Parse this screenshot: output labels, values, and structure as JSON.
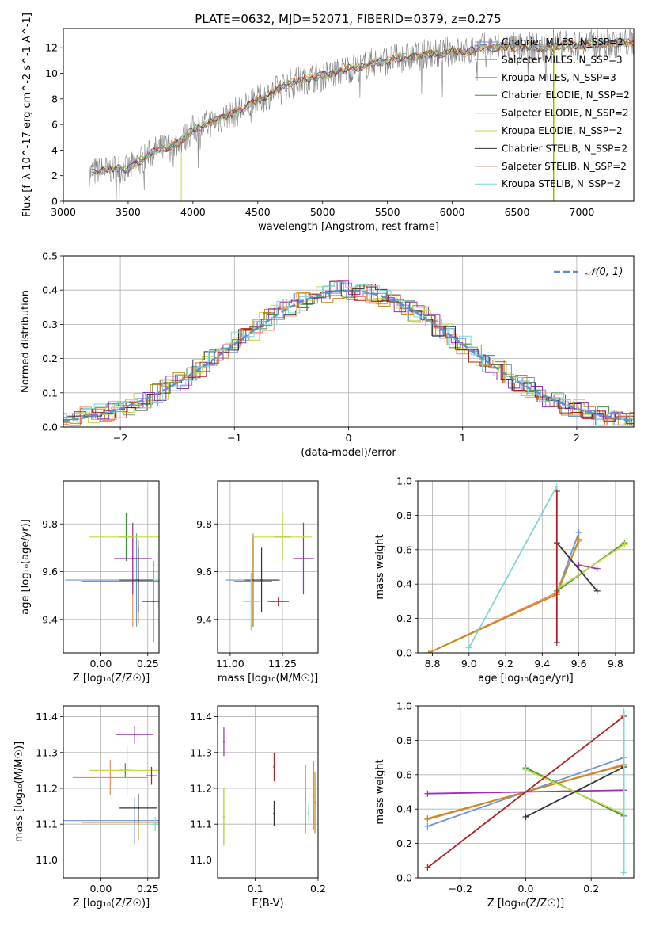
{
  "title": "PLATE=0632, MJD=52071, FIBERID=0379, z=0.275",
  "colors": {
    "Chabrier MILES": "#6d93d8",
    "Salpeter MILES": "#ee8a5a",
    "Kroupa MILES": "#c8891a",
    "Chabrier ELODIE": "#3f8f3f",
    "Salpeter ELODIE": "#9b2fae",
    "Kroupa ELODIE": "#c6d93e",
    "Chabrier STELIB": "#333333",
    "Salpeter STELIB": "#b22222",
    "Kroupa STELIB": "#7fd6d6",
    "normal": "#5b8fd6"
  },
  "chart_data": [
    {
      "type": "line",
      "name": "spectrum",
      "xlabel": "wavelength [Angstrom, rest frame]",
      "ylabel": "Flux [f_λ 10^-17 erg cm^-2 s^-1 A^-1]",
      "xlim": [
        3000,
        7400
      ],
      "ylim": [
        0,
        13.5
      ],
      "xticks": [
        3000,
        3500,
        4000,
        4500,
        5000,
        5500,
        6000,
        6500,
        7000
      ],
      "yticks": [
        0,
        2,
        4,
        6,
        8,
        10,
        12
      ],
      "legend_position": "top-right",
      "legend": [
        {
          "label": "Chabrier MILES, N_SSP=2",
          "color_key": "Chabrier MILES"
        },
        {
          "label": "Salpeter MILES, N_SSP=3",
          "color_key": "Salpeter MILES"
        },
        {
          "label": "Kroupa MILES, N_SSP=3",
          "color_key": "Kroupa MILES"
        },
        {
          "label": "Chabrier ELODIE, N_SSP=2",
          "color_key": "Chabrier ELODIE"
        },
        {
          "label": "Salpeter ELODIE, N_SSP=2",
          "color_key": "Salpeter ELODIE"
        },
        {
          "label": "Kroupa ELODIE, N_SSP=2",
          "color_key": "Kroupa ELODIE"
        },
        {
          "label": "Chabrier STELIB, N_SSP=2",
          "color_key": "Chabrier STELIB"
        },
        {
          "label": "Salpeter STELIB, N_SSP=2",
          "color_key": "Salpeter STELIB"
        },
        {
          "label": "Kroupa STELIB, N_SSP=2",
          "color_key": "Kroupa STELIB"
        }
      ],
      "observed_continuum": {
        "x": [
          3200,
          3300,
          3400,
          3500,
          3600,
          3700,
          3800,
          3900,
          4000,
          4100,
          4200,
          4300,
          4400,
          4500,
          4600,
          4700,
          4800,
          4900,
          5000,
          5100,
          5200,
          5300,
          5400,
          5500,
          5600,
          5700,
          5800,
          5900,
          6000,
          6100,
          6200,
          6300,
          6400,
          6500,
          6600,
          6700,
          6800,
          6900,
          7000,
          7100,
          7200,
          7300,
          7400
        ],
        "y": [
          2.2,
          2.4,
          2.6,
          2.5,
          3.2,
          3.9,
          4.2,
          4.6,
          5.6,
          6.0,
          6.4,
          6.8,
          7.3,
          7.9,
          8.4,
          9.0,
          9.4,
          9.6,
          9.8,
          10.0,
          10.4,
          10.5,
          10.9,
          11.0,
          11.2,
          11.3,
          11.5,
          11.5,
          11.8,
          11.6,
          12.0,
          12.0,
          12.1,
          12.0,
          12.1,
          11.9,
          12.1,
          12.2,
          12.2,
          12.3,
          12.3,
          12.4,
          12.4
        ]
      },
      "vertical_lines": [
        4370,
        6780
      ]
    },
    {
      "type": "line",
      "name": "residual-histogram",
      "xlabel": "(data-model)/error",
      "ylabel": "Normed distribution",
      "xlim": [
        -2.5,
        2.5
      ],
      "ylim": [
        0,
        0.5
      ],
      "xticks": [
        -2,
        -1,
        0,
        1,
        2
      ],
      "yticks": [
        0.0,
        0.1,
        0.2,
        0.3,
        0.4,
        0.5
      ],
      "grid": true,
      "legend_position": "top-right",
      "legend": [
        {
          "label": "𝒩(0, 1)",
          "color_key": "normal"
        }
      ],
      "reference_curve": "standard normal density"
    },
    {
      "type": "scatter",
      "name": "age-vs-Z",
      "xlabel": "Z [log₁₀(Z/Z☉)]",
      "ylabel": "age  [log₁₀(age/yr)]",
      "xlim": [
        -0.2,
        0.31
      ],
      "ylim": [
        9.26,
        9.98
      ],
      "xticks": [
        0.0,
        0.25
      ],
      "yticks": [
        9.4,
        9.6,
        9.8
      ],
      "grid": true,
      "points": [
        {
          "model": "Chabrier MILES",
          "x": 0.19,
          "xerr": 0.38,
          "y": 9.565,
          "yerr": 0.39
        },
        {
          "model": "Salpeter MILES",
          "x": 0.17,
          "xerr": 0.2,
          "y": 9.56,
          "yerr": 0.38
        },
        {
          "model": "Kroupa MILES",
          "x": 0.2,
          "xerr": 0.3,
          "y": 9.56,
          "yerr": 0.35
        },
        {
          "model": "Chabrier ELODIE",
          "x": 0.135,
          "xerr": 0.04,
          "y": 9.745,
          "yerr": 0.2
        },
        {
          "model": "Salpeter ELODIE",
          "x": 0.17,
          "xerr": 0.1,
          "y": 9.655,
          "yerr": 0.3
        },
        {
          "model": "Kroupa ELODIE",
          "x": 0.14,
          "xerr": 0.2,
          "y": 9.745,
          "yerr": 0.2
        },
        {
          "model": "Chabrier STELIB",
          "x": 0.2,
          "xerr": 0.1,
          "y": 9.565,
          "yerr": 0.27
        },
        {
          "model": "Salpeter STELIB",
          "x": 0.28,
          "xerr": 0.06,
          "y": 9.475,
          "yerr": 0.34
        },
        {
          "model": "Kroupa STELIB",
          "x": 0.3,
          "xerr": 0.02,
          "y": 9.565,
          "yerr": 0.24
        }
      ]
    },
    {
      "type": "scatter",
      "name": "age-vs-mass",
      "xlabel": "mass [log₁₀(M/M☉)]",
      "ylabel": "",
      "xlim": [
        10.94,
        11.42
      ],
      "ylim": [
        9.26,
        9.98
      ],
      "xticks": [
        11.0,
        11.25
      ],
      "yticks": [
        9.4,
        9.6,
        9.8
      ],
      "grid": true,
      "points": [
        {
          "model": "Chabrier MILES",
          "x": 11.11,
          "xerr": 0.13,
          "y": 9.565,
          "yerr": 0.39
        },
        {
          "model": "Salpeter MILES",
          "x": 11.11,
          "xerr": 0.09,
          "y": 9.56,
          "yerr": 0.38
        },
        {
          "model": "Kroupa MILES",
          "x": 11.11,
          "xerr": 0.09,
          "y": 9.56,
          "yerr": 0.38
        },
        {
          "model": "Chabrier ELODIE",
          "x": 11.25,
          "xerr": 0.04,
          "y": 9.745,
          "yerr": 0.2
        },
        {
          "model": "Salpeter ELODIE",
          "x": 11.35,
          "xerr": 0.05,
          "y": 9.655,
          "yerr": 0.3
        },
        {
          "model": "Kroupa ELODIE",
          "x": 11.25,
          "xerr": 0.14,
          "y": 9.745,
          "yerr": 0.2
        },
        {
          "model": "Chabrier STELIB",
          "x": 11.15,
          "xerr": 0.08,
          "y": 9.565,
          "yerr": 0.27
        },
        {
          "model": "Salpeter STELIB",
          "x": 11.23,
          "xerr": 0.05,
          "y": 9.475,
          "yerr": 0.04
        },
        {
          "model": "Kroupa STELIB",
          "x": 11.1,
          "xerr": 0.04,
          "y": 9.475,
          "yerr": 0.24
        }
      ]
    },
    {
      "type": "line",
      "name": "mass-weight-vs-age",
      "xlabel": "age  [log₁₀(age/yr)]",
      "ylabel": "mass weight",
      "xlim": [
        8.72,
        9.9
      ],
      "ylim": [
        0,
        1
      ],
      "xticks": [
        8.8,
        9.0,
        9.2,
        9.4,
        9.6,
        9.8
      ],
      "yticks": [
        0.0,
        0.2,
        0.4,
        0.6,
        0.8,
        1.0
      ],
      "grid": true,
      "series": [
        {
          "model": "Chabrier MILES",
          "x": [
            9.48,
            9.6
          ],
          "y": [
            0.35,
            0.7
          ]
        },
        {
          "model": "Salpeter MILES",
          "x": [
            8.78,
            9.48,
            9.6
          ],
          "y": [
            0.0,
            0.35,
            0.65
          ]
        },
        {
          "model": "Kroupa MILES",
          "x": [
            8.78,
            9.48,
            9.6
          ],
          "y": [
            0.0,
            0.34,
            0.66
          ]
        },
        {
          "model": "Chabrier ELODIE",
          "x": [
            9.48,
            9.85
          ],
          "y": [
            0.36,
            0.64
          ]
        },
        {
          "model": "Salpeter ELODIE",
          "x": [
            9.6,
            9.7
          ],
          "y": [
            0.51,
            0.49
          ]
        },
        {
          "model": "Kroupa ELODIE",
          "x": [
            9.48,
            9.85
          ],
          "y": [
            0.37,
            0.63
          ]
        },
        {
          "model": "Chabrier STELIB",
          "x": [
            9.48,
            9.7
          ],
          "y": [
            0.64,
            0.36
          ]
        },
        {
          "model": "Salpeter STELIB",
          "x": [
            9.48,
            9.48
          ],
          "y": [
            0.06,
            0.94
          ]
        },
        {
          "model": "Kroupa STELIB",
          "x": [
            9.0,
            9.48
          ],
          "y": [
            0.03,
            0.97
          ]
        }
      ]
    },
    {
      "type": "scatter",
      "name": "mass-vs-Z",
      "xlabel": "Z [log₁₀(Z/Z☉)]",
      "ylabel": "mass [log₁₀(M/M☉)]",
      "xlim": [
        -0.2,
        0.31
      ],
      "ylim": [
        10.95,
        11.43
      ],
      "xticks": [
        0.0,
        0.25
      ],
      "yticks": [
        11.0,
        11.1,
        11.2,
        11.3,
        11.4
      ],
      "grid": true,
      "points": [
        {
          "model": "Chabrier MILES",
          "x": 0.18,
          "xerr": 0.38,
          "y": 11.11,
          "yerr": 0.13
        },
        {
          "model": "Salpeter MILES",
          "x": 0.05,
          "xerr": 0.2,
          "y": 11.23,
          "yerr": 0.1
        },
        {
          "model": "Kroupa MILES",
          "x": 0.2,
          "xerr": 0.3,
          "y": 11.105,
          "yerr": 0.1
        },
        {
          "model": "Chabrier ELODIE",
          "x": 0.13,
          "xerr": 0.04,
          "y": 11.25,
          "yerr": 0.04
        },
        {
          "model": "Salpeter ELODIE",
          "x": 0.18,
          "xerr": 0.1,
          "y": 11.35,
          "yerr": 0.05
        },
        {
          "model": "Kroupa ELODIE",
          "x": 0.14,
          "xerr": 0.2,
          "y": 11.25,
          "yerr": 0.14
        },
        {
          "model": "Chabrier STELIB",
          "x": 0.2,
          "xerr": 0.1,
          "y": 11.145,
          "yerr": 0.08
        },
        {
          "model": "Salpeter STELIB",
          "x": 0.27,
          "xerr": 0.03,
          "y": 11.235,
          "yerr": 0.05
        },
        {
          "model": "Kroupa STELIB",
          "x": 0.29,
          "xerr": 0.02,
          "y": 11.1,
          "yerr": 0.04
        }
      ]
    },
    {
      "type": "scatter",
      "name": "mass-vs-EBV",
      "xlabel": "E(B-V)",
      "ylabel": "",
      "xlim": [
        0.04,
        0.2
      ],
      "ylim": [
        10.95,
        11.43
      ],
      "xticks": [
        0.1,
        0.2
      ],
      "yticks": [
        11.0,
        11.1,
        11.2,
        11.3,
        11.4
      ],
      "grid": true,
      "points": [
        {
          "model": "Chabrier MILES",
          "x": 0.18,
          "y": 11.17,
          "yerr": 0.19
        },
        {
          "model": "Salpeter MILES",
          "x": 0.193,
          "y": 11.18,
          "yerr": 0.19
        },
        {
          "model": "Kroupa MILES",
          "x": 0.195,
          "y": 11.16,
          "yerr": 0.17
        },
        {
          "model": "Chabrier ELODIE",
          "x": 0.05,
          "y": 11.12,
          "yerr": 0.16
        },
        {
          "model": "Salpeter ELODIE",
          "x": 0.05,
          "y": 11.33,
          "yerr": 0.08
        },
        {
          "model": "Kroupa ELODIE",
          "x": 0.05,
          "y": 11.12,
          "yerr": 0.16
        },
        {
          "model": "Chabrier STELIB",
          "x": 0.13,
          "y": 11.13,
          "yerr": 0.07
        },
        {
          "model": "Salpeter STELIB",
          "x": 0.13,
          "y": 11.26,
          "yerr": 0.08
        },
        {
          "model": "Kroupa STELIB",
          "x": 0.185,
          "y": 11.13,
          "yerr": 0.05
        }
      ]
    },
    {
      "type": "line",
      "name": "mass-weight-vs-Z",
      "xlabel": "Z [log₁₀(Z/Z☉)]",
      "ylabel": "mass weight",
      "xlim": [
        -0.33,
        0.33
      ],
      "ylim": [
        0,
        1
      ],
      "xticks": [
        -0.2,
        0.0,
        0.2
      ],
      "yticks": [
        0.0,
        0.2,
        0.4,
        0.6,
        0.8,
        1.0
      ],
      "grid": true,
      "series": [
        {
          "model": "Chabrier MILES",
          "x": [
            -0.3,
            0.3
          ],
          "y": [
            0.3,
            0.7
          ]
        },
        {
          "model": "Salpeter MILES",
          "x": [
            -0.3,
            0.3
          ],
          "y": [
            0.34,
            0.66
          ]
        },
        {
          "model": "Kroupa MILES",
          "x": [
            -0.3,
            0.3
          ],
          "y": [
            0.345,
            0.655
          ]
        },
        {
          "model": "Chabrier ELODIE",
          "x": [
            0.0,
            0.3
          ],
          "y": [
            0.64,
            0.36
          ]
        },
        {
          "model": "Salpeter ELODIE",
          "x": [
            -0.3,
            0.3
          ],
          "y": [
            0.49,
            0.51
          ]
        },
        {
          "model": "Kroupa ELODIE",
          "x": [
            0.0,
            0.3
          ],
          "y": [
            0.63,
            0.37
          ]
        },
        {
          "model": "Chabrier STELIB",
          "x": [
            0.0,
            0.3
          ],
          "y": [
            0.355,
            0.645
          ]
        },
        {
          "model": "Salpeter STELIB",
          "x": [
            -0.3,
            0.3
          ],
          "y": [
            0.06,
            0.94
          ]
        },
        {
          "model": "Kroupa STELIB",
          "x": [
            0.3,
            0.3
          ],
          "y": [
            0.03,
            0.97
          ]
        }
      ]
    }
  ]
}
